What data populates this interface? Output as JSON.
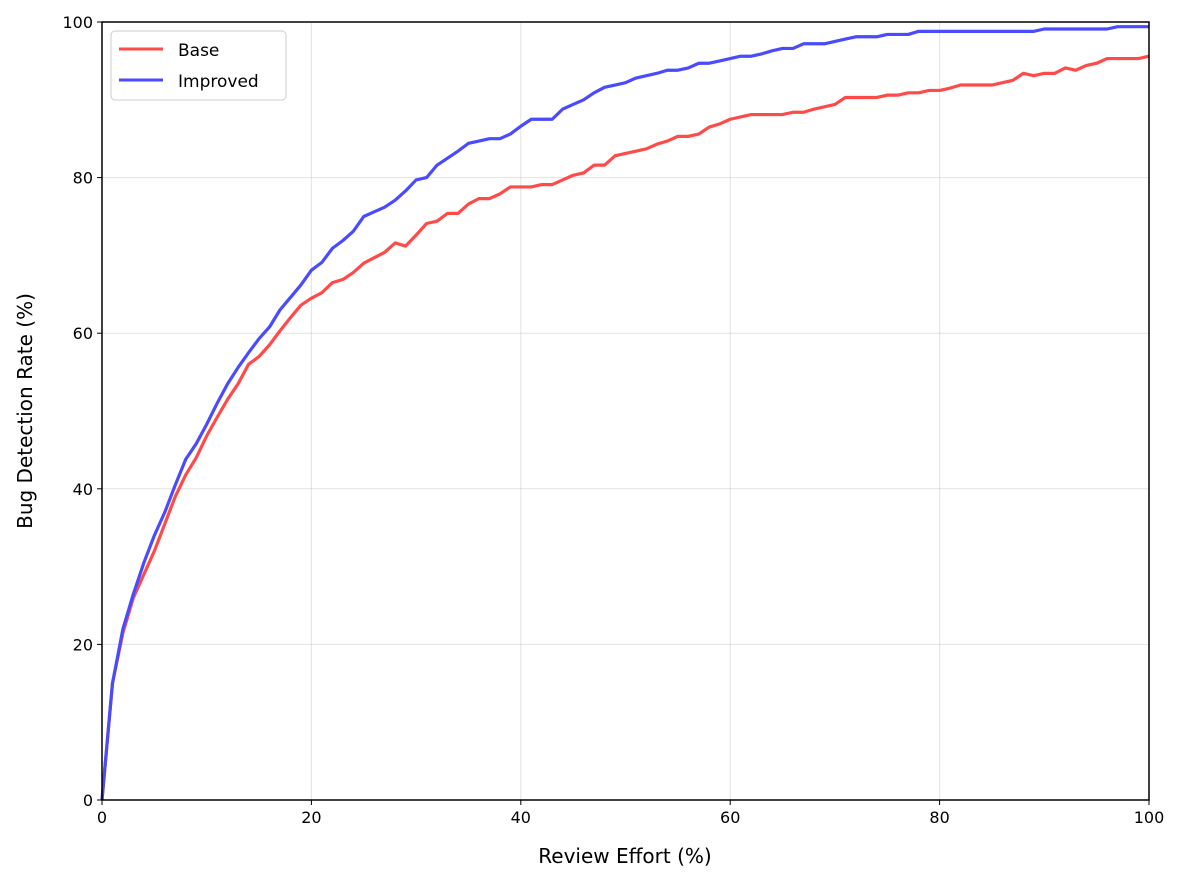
{
  "chart_data": {
    "type": "line",
    "title": "",
    "xlabel": "Review Effort (%)",
    "ylabel": "Bug Detection Rate (%)",
    "xlim": [
      0,
      100
    ],
    "ylim": [
      0,
      100
    ],
    "xticks": [
      "0",
      "20",
      "40",
      "60",
      "80",
      "100"
    ],
    "yticks": [
      "0",
      "20",
      "40",
      "60",
      "80",
      "100"
    ],
    "grid": true,
    "legend_position": "top-left",
    "x": [
      0,
      1,
      2,
      3,
      4,
      5,
      6,
      7,
      8,
      9,
      10,
      11,
      12,
      13,
      14,
      15,
      16,
      17,
      18,
      19,
      20,
      21,
      22,
      23,
      24,
      25,
      26,
      27,
      28,
      29,
      30,
      31,
      32,
      33,
      34,
      35,
      36,
      37,
      38,
      39,
      40,
      41,
      42,
      43,
      44,
      45,
      46,
      47,
      48,
      49,
      50,
      51,
      52,
      53,
      54,
      55,
      56,
      57,
      58,
      59,
      60,
      61,
      62,
      63,
      64,
      65,
      66,
      67,
      68,
      69,
      70,
      71,
      72,
      73,
      74,
      75,
      76,
      77,
      78,
      79,
      80,
      81,
      82,
      83,
      84,
      85,
      86,
      87,
      88,
      89,
      90,
      91,
      92,
      93,
      94,
      95,
      96,
      97,
      98,
      99,
      100
    ],
    "series": [
      {
        "name": "Base",
        "color": "#ff4a4a",
        "values": [
          0,
          15,
          21.5,
          26,
          29,
          32,
          35.5,
          39,
          41.8,
          44,
          46.8,
          49.2,
          51.5,
          53.5,
          56,
          57,
          58.5,
          60.3,
          62,
          63.6,
          64.5,
          65.2,
          66.5,
          66.9,
          67.8,
          69,
          69.7,
          70.4,
          71.6,
          71.2,
          72.6,
          74.1,
          74.4,
          75.4,
          75.4,
          76.6,
          77.3,
          77.3,
          77.9,
          78.8,
          78.8,
          78.8,
          79.1,
          79.1,
          79.7,
          80.3,
          80.6,
          81.6,
          81.6,
          82.8,
          83.1,
          83.4,
          83.7,
          84.3,
          84.7,
          85.3,
          85.3,
          85.6,
          86.5,
          86.9,
          87.5,
          87.8,
          88.1,
          88.1,
          88.1,
          88.1,
          88.4,
          88.4,
          88.8,
          89.1,
          89.4,
          90.3,
          90.3,
          90.3,
          90.3,
          90.6,
          90.6,
          90.9,
          90.9,
          91.2,
          91.2,
          91.5,
          91.9,
          91.9,
          91.9,
          91.9,
          92.2,
          92.5,
          93.4,
          93.1,
          93.4,
          93.4,
          94.1,
          93.8,
          94.4,
          94.7,
          95.3,
          95.3,
          95.3,
          95.3,
          95.6
        ]
      },
      {
        "name": "Improved",
        "color": "#4a4aff",
        "values": [
          0,
          15,
          22,
          26.5,
          30.5,
          34,
          37,
          40.5,
          43.8,
          45.8,
          48.3,
          51,
          53.5,
          55.6,
          57.5,
          59.3,
          60.8,
          63,
          64.6,
          66.2,
          68.1,
          69.1,
          70.9,
          71.9,
          73.1,
          75,
          75.6,
          76.2,
          77.1,
          78.3,
          79.7,
          80,
          81.6,
          82.5,
          83.4,
          84.4,
          84.7,
          85,
          85,
          85.6,
          86.6,
          87.5,
          87.5,
          87.5,
          88.8,
          89.4,
          90,
          90.9,
          91.6,
          91.9,
          92.2,
          92.8,
          93.1,
          93.4,
          93.8,
          93.8,
          94.1,
          94.7,
          94.7,
          95,
          95.3,
          95.6,
          95.6,
          95.9,
          96.3,
          96.6,
          96.6,
          97.2,
          97.2,
          97.2,
          97.5,
          97.8,
          98.1,
          98.1,
          98.1,
          98.4,
          98.4,
          98.4,
          98.8,
          98.8,
          98.8,
          98.8,
          98.8,
          98.8,
          98.8,
          98.8,
          98.8,
          98.8,
          98.8,
          98.8,
          99.1,
          99.1,
          99.1,
          99.1,
          99.1,
          99.1,
          99.1,
          99.4,
          99.4,
          99.4,
          99.4
        ]
      }
    ]
  }
}
